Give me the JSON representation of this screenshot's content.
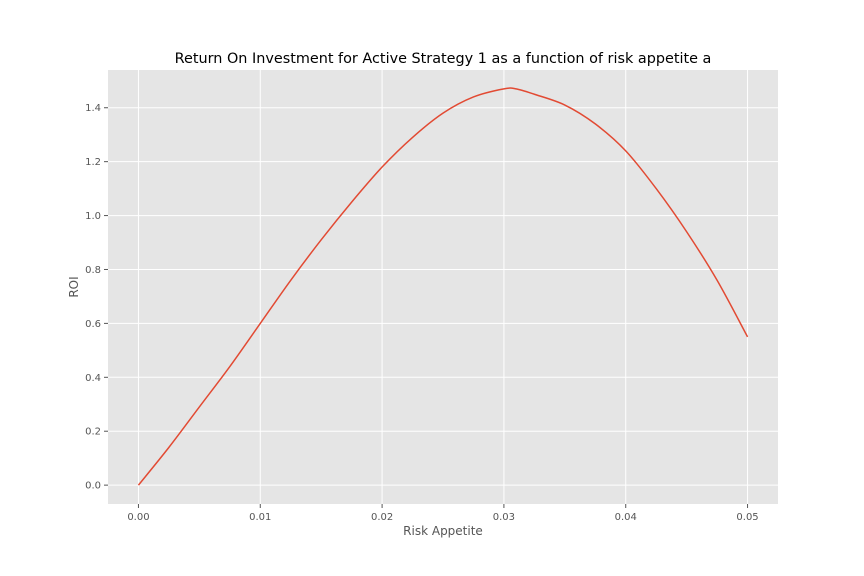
{
  "chart_data": {
    "type": "line",
    "title": "Return On Investment for Active Strategy 1 as a function of risk appetite a",
    "xlabel": "Risk Appetite",
    "ylabel": "ROI",
    "xlim": [
      -0.0025,
      0.0525
    ],
    "ylim": [
      -0.07,
      1.54
    ],
    "x_ticks": [
      0.0,
      0.01,
      0.02,
      0.03,
      0.04,
      0.05
    ],
    "x_tick_labels": [
      "0.00",
      "0.01",
      "0.02",
      "0.03",
      "0.04",
      "0.05"
    ],
    "y_ticks": [
      0.0,
      0.2,
      0.4,
      0.6,
      0.8,
      1.0,
      1.2,
      1.4
    ],
    "y_tick_labels": [
      "0.0",
      "0.2",
      "0.4",
      "0.6",
      "0.8",
      "1.0",
      "1.2",
      "1.4"
    ],
    "grid": true,
    "legend": "none",
    "colors": {
      "plot_background": "#E5E5E5",
      "grid": "#FFFFFF",
      "line": "#E24A33",
      "tick_text": "#555555",
      "title_text": "#000000"
    },
    "series": [
      {
        "x": [
          0.0,
          0.0025,
          0.005,
          0.0075,
          0.01,
          0.0125,
          0.015,
          0.0175,
          0.02,
          0.0225,
          0.025,
          0.0275,
          0.03,
          0.031,
          0.0325,
          0.035,
          0.0375,
          0.04,
          0.0425,
          0.045,
          0.0475,
          0.05
        ],
        "y": [
          0.0,
          0.14,
          0.29,
          0.44,
          0.6,
          0.76,
          0.91,
          1.05,
          1.18,
          1.29,
          1.38,
          1.44,
          1.47,
          1.47,
          1.45,
          1.41,
          1.34,
          1.24,
          1.1,
          0.94,
          0.76,
          0.55
        ]
      }
    ]
  }
}
